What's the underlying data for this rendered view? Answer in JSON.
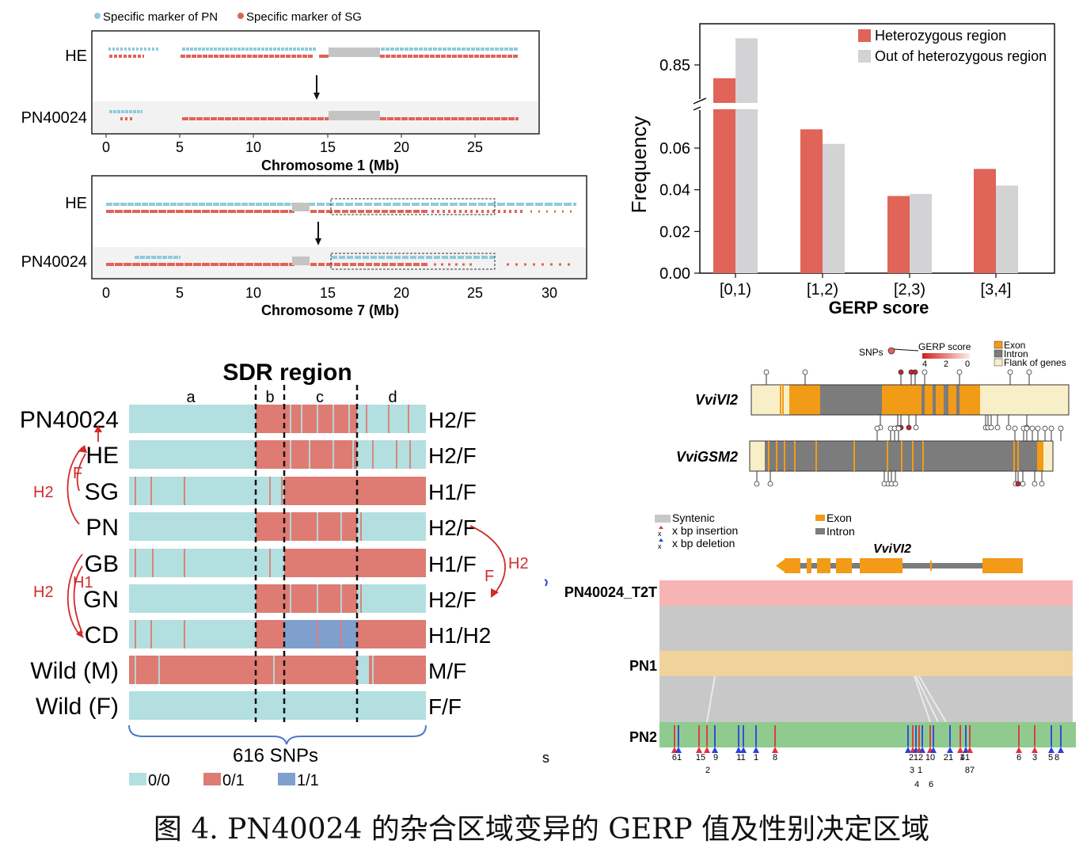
{
  "colors": {
    "pn": "#8ccbdc",
    "sg": "#e06356",
    "gray": "#c4c4c4",
    "het": "#e06458",
    "out": "#d3d3d5",
    "g00": "#b3dfe0",
    "g01": "#de7b72",
    "g11": "#7f9fcd",
    "exon": "#f29b16",
    "intron": "#7c7c7c",
    "flank": "#f8efc8",
    "syn": "#c8c8c8",
    "t2t": "#f6b5b3",
    "pn1": "#f0d39a",
    "pn2": "#8fcb8f",
    "ins": "#e0323a",
    "del": "#2d3fe0"
  },
  "panelA": {
    "legend": {
      "pn": "Specific marker of PN",
      "sg": "Specific marker of SG"
    },
    "chr1": {
      "rows": [
        "HE",
        "PN40024"
      ],
      "xlabel": "Chromosome 1 (Mb)",
      "ticks": [
        "0",
        "5",
        "10",
        "15",
        "20",
        "25"
      ]
    },
    "chr7": {
      "rows": [
        "HE",
        "PN40024"
      ],
      "xlabel": "Chromosome 7 (Mb)",
      "ticks": [
        "0",
        "5",
        "10",
        "15",
        "20",
        "25",
        "30"
      ]
    }
  },
  "chart_data": {
    "type": "bar",
    "categories": [
      "[0,1)",
      "[1,2)",
      "[2,3)",
      "[3,4]"
    ],
    "series": [
      {
        "name": "Heterozygous region",
        "values": [
          0.82,
          0.069,
          0.037,
          0.05
        ]
      },
      {
        "name": "Out of heterozygous region",
        "values": [
          0.91,
          0.062,
          0.038,
          0.042
        ]
      }
    ],
    "xlabel": "GERP score",
    "ylabel": "Frequency",
    "yticks": [
      "0.00",
      "0.02",
      "0.04",
      "0.06",
      "0.85"
    ],
    "axis_break": true,
    "legend": "top-right"
  },
  "panelC": {
    "title": "SDR region",
    "regions": [
      "a",
      "b",
      "c",
      "d"
    ],
    "rows": [
      {
        "name": "PN40024",
        "geno": "H2/F"
      },
      {
        "name": "HE",
        "geno": "H2/F"
      },
      {
        "name": "SG",
        "geno": "H1/F"
      },
      {
        "name": "PN",
        "geno": "H2/F"
      },
      {
        "name": "GB",
        "geno": "H1/F"
      },
      {
        "name": "GN",
        "geno": "H2/F"
      },
      {
        "name": "CD",
        "geno": "H1/H2"
      },
      {
        "name": "Wild (M)",
        "geno": "M/F"
      },
      {
        "name": "Wild (F)",
        "geno": "F/F"
      }
    ],
    "arrow_labels": {
      "h2_left_top": "H2",
      "f_left": "F",
      "h2_left_bottom": "H2",
      "h1_left": "H1",
      "h2_right": "H2",
      "f_right": "F"
    },
    "snps": "616 SNPs",
    "legend": [
      "0/0",
      "0/1",
      "1/1"
    ]
  },
  "panelD": {
    "snps_label": "SNPs",
    "gerp_label": "GERP score",
    "gerp_ticks": [
      "4",
      "2",
      "0"
    ],
    "legend": [
      "Exon",
      "Intron",
      "Flank of genes"
    ],
    "genes": [
      "VviVI2",
      "VviGSM2"
    ]
  },
  "panelE": {
    "legend": {
      "syntenic": "Syntenic",
      "ins": "x bp insertion",
      "del": "x bp deletion",
      "exon": "Exon",
      "intron": "Intron"
    },
    "gene": "VviVI2",
    "tracks": [
      "PN40024_T2T",
      "PN1",
      "PN2"
    ],
    "marker_labels": [
      "61",
      "15",
      "9",
      "2",
      "11",
      "1",
      "8",
      "212",
      "10",
      "21",
      "1",
      "41",
      "6",
      "3",
      "8",
      "87",
      "4",
      "6",
      "3",
      "1",
      "5"
    ],
    "stray": "s"
  },
  "caption": "图 4. PN40024 的杂合区域变异的 GERP 值及性别决定区域"
}
